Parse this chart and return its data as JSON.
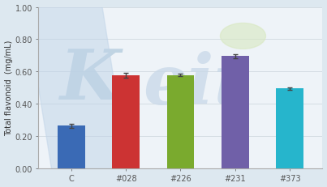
{
  "categories": [
    "C",
    "#028",
    "#226",
    "#231",
    "#373"
  ],
  "values": [
    0.263,
    0.575,
    0.578,
    0.695,
    0.495
  ],
  "errors": [
    0.013,
    0.015,
    0.008,
    0.012,
    0.007
  ],
  "bar_colors": [
    "#3a6ab5",
    "#cc3333",
    "#7aaa2e",
    "#7060a8",
    "#26b5cc"
  ],
  "ylabel": "Total flavonoid  (mg/mL)",
  "ylim": [
    0.0,
    1.0
  ],
  "yticks": [
    0.0,
    0.2,
    0.4,
    0.6,
    0.8,
    1.0
  ],
  "grid_color": "#d0d8e0",
  "bg_outer": "#dde8f0",
  "bg_plot": "#eef3f8",
  "bar_width": 0.5,
  "ylabel_fontsize": 7.0,
  "tick_fontsize": 7.0,
  "spine_color": "#aaaaaa",
  "watermark_color_k": "#b8cfe0",
  "watermark_color_eit": "#c8d8e8"
}
